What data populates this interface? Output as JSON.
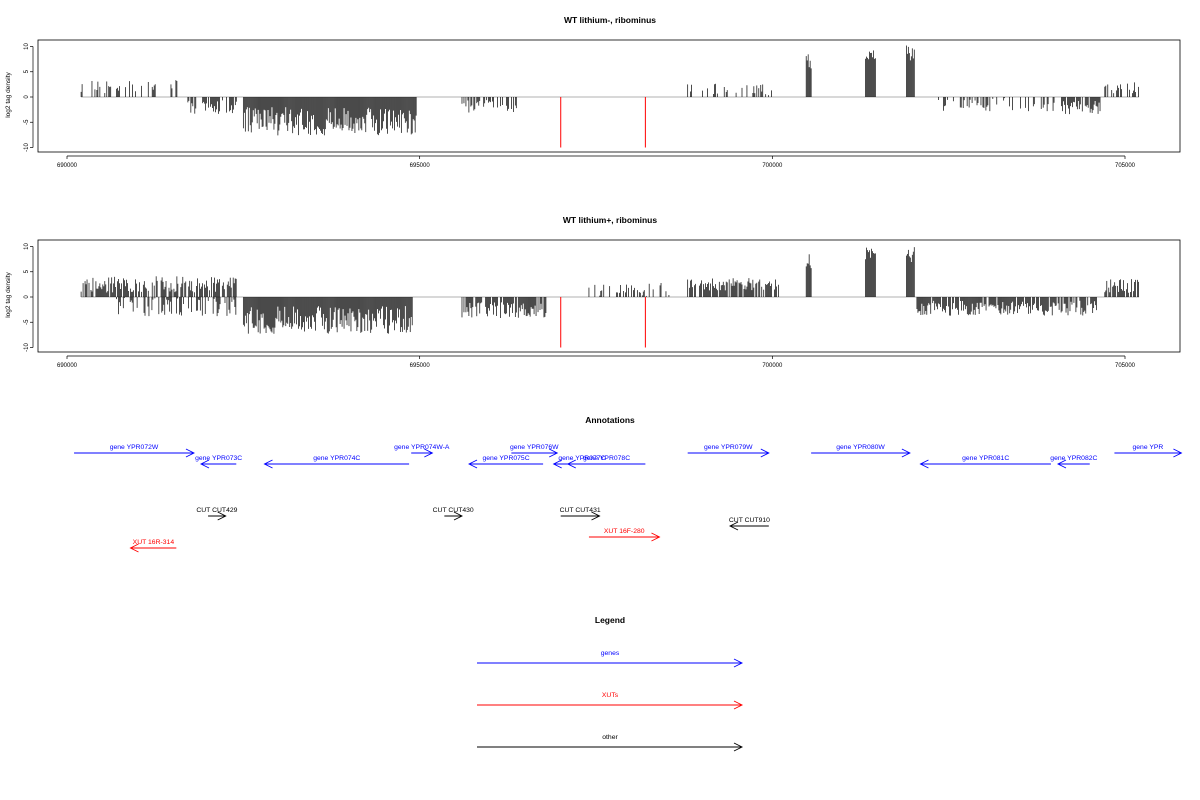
{
  "chart_data": [
    {
      "type": "bar",
      "title": "WT lithium-, ribominus",
      "ylabel": "log2 tag density",
      "xlim": [
        690000,
        705500
      ],
      "ylim": [
        -10.5,
        11
      ],
      "x_ticks": [
        690000,
        695000,
        700000,
        705000
      ],
      "x_tick_labels": [
        "690000",
        "695000",
        "700000",
        "705000"
      ],
      "y_ticks": [
        -10,
        -5,
        0,
        5,
        10
      ],
      "y_tick_labels": [
        "-10",
        "-5",
        "0",
        "5",
        "10"
      ],
      "segments": [
        {
          "x0": 690200,
          "x1": 691600,
          "base": 2.0,
          "var": 1.4,
          "density": 0.35
        },
        {
          "x0": 691700,
          "x1": 692400,
          "base": -2.0,
          "var": 1.4,
          "density": 0.75
        },
        {
          "x0": 692500,
          "x1": 694950,
          "base": -4.8,
          "var": 2.8,
          "density": 1.0
        },
        {
          "x0": 695600,
          "x1": 696400,
          "base": -1.8,
          "var": 1.3,
          "density": 0.45
        },
        {
          "x0": 698800,
          "x1": 700000,
          "base": 1.5,
          "var": 1.2,
          "density": 0.35
        },
        {
          "x0": 700480,
          "x1": 700560,
          "base": 7.0,
          "var": 1.8,
          "density": 1.0
        },
        {
          "x0": 701320,
          "x1": 701460,
          "base": 8.5,
          "var": 1.3,
          "density": 1.0
        },
        {
          "x0": 701900,
          "x1": 702020,
          "base": 8.5,
          "var": 1.8,
          "density": 1.0
        },
        {
          "x0": 702300,
          "x1": 704000,
          "base": -1.5,
          "var": 1.3,
          "density": 0.4
        },
        {
          "x0": 704100,
          "x1": 704650,
          "base": -2.0,
          "var": 1.4,
          "density": 0.7
        },
        {
          "x0": 704700,
          "x1": 705200,
          "base": 2.0,
          "var": 1.4,
          "density": 0.5
        }
      ],
      "markers": [
        {
          "x": 697000,
          "y": -10,
          "color": "#ff0000"
        },
        {
          "x": 698200,
          "y": -10,
          "color": "#ff0000"
        }
      ],
      "baseline_x": [
        690200,
        705200
      ]
    },
    {
      "type": "bar",
      "title": "WT lithium+, ribominus",
      "ylabel": "log2 tag density",
      "xlim": [
        690000,
        705500
      ],
      "ylim": [
        -10.5,
        11
      ],
      "x_ticks": [
        690000,
        695000,
        700000,
        705000
      ],
      "x_tick_labels": [
        "690000",
        "695000",
        "700000",
        "705000"
      ],
      "y_ticks": [
        -10,
        -5,
        0,
        5,
        10
      ],
      "y_tick_labels": [
        "-10",
        "-5",
        "0",
        "5",
        "10"
      ],
      "segments": [
        {
          "x0": 690200,
          "x1": 692400,
          "base": 2.5,
          "var": 1.6,
          "density": 0.75
        },
        {
          "x0": 690700,
          "x1": 692400,
          "base": -2.0,
          "var": 1.8,
          "density": 0.5
        },
        {
          "x0": 692500,
          "x1": 694900,
          "base": -4.5,
          "var": 2.8,
          "density": 1.0
        },
        {
          "x0": 695600,
          "x1": 696800,
          "base": -2.6,
          "var": 1.6,
          "density": 0.85
        },
        {
          "x0": 697400,
          "x1": 698600,
          "base": 1.5,
          "var": 1.3,
          "density": 0.4
        },
        {
          "x0": 698800,
          "x1": 700100,
          "base": 2.6,
          "var": 1.3,
          "density": 0.85
        },
        {
          "x0": 700480,
          "x1": 700560,
          "base": 7.0,
          "var": 1.8,
          "density": 1.0
        },
        {
          "x0": 701320,
          "x1": 701460,
          "base": 8.5,
          "var": 1.3,
          "density": 1.0
        },
        {
          "x0": 701900,
          "x1": 702020,
          "base": 8.5,
          "var": 1.8,
          "density": 1.0
        },
        {
          "x0": 702050,
          "x1": 704600,
          "base": -2.2,
          "var": 1.5,
          "density": 0.8
        },
        {
          "x0": 704700,
          "x1": 705200,
          "base": 2.2,
          "var": 1.4,
          "density": 0.6
        }
      ],
      "markers": [
        {
          "x": 697000,
          "y": -10,
          "color": "#ff0000"
        },
        {
          "x": 698200,
          "y": -10,
          "color": "#ff0000"
        }
      ],
      "baseline_x": [
        690200,
        705200
      ]
    }
  ],
  "annotations": {
    "title": "Annotations",
    "items": [
      {
        "label": "gene YPR072W",
        "x0": 690100,
        "x1": 691800,
        "strand": "+",
        "row": 1,
        "color": "#0000ff"
      },
      {
        "label": "gene YPR073C",
        "x0": 691900,
        "x1": 692400,
        "strand": "-",
        "row": 2,
        "color": "#0000ff"
      },
      {
        "label": "gene YPR074C",
        "x0": 692800,
        "x1": 694850,
        "strand": "-",
        "row": 2,
        "color": "#0000ff"
      },
      {
        "label": "gene YPR074W-A",
        "x0": 694880,
        "x1": 695180,
        "strand": "+",
        "row": 1,
        "color": "#0000ff"
      },
      {
        "label": "gene YPR075C",
        "x0": 695700,
        "x1": 696750,
        "strand": "-",
        "row": 2,
        "color": "#0000ff"
      },
      {
        "label": "gene YPR076W",
        "x0": 696300,
        "x1": 696950,
        "strand": "+",
        "row": 1,
        "color": "#0000ff"
      },
      {
        "label": "gene YPR077C",
        "x0": 696900,
        "x1": 697700,
        "strand": "-",
        "row": 2,
        "color": "#0000ff"
      },
      {
        "label": "gene YPR078C",
        "x0": 697100,
        "x1": 698200,
        "strand": "-",
        "row": 2,
        "color": "#0000ff"
      },
      {
        "label": "gene YPR079W",
        "x0": 698800,
        "x1": 699950,
        "strand": "+",
        "row": 1,
        "color": "#0000ff"
      },
      {
        "label": "gene YPR080W",
        "x0": 700550,
        "x1": 701950,
        "strand": "+",
        "row": 1,
        "color": "#0000ff"
      },
      {
        "label": "gene YPR081C",
        "x0": 702100,
        "x1": 703950,
        "strand": "-",
        "row": 2,
        "color": "#0000ff"
      },
      {
        "label": "gene YPR082C",
        "x0": 704050,
        "x1": 704500,
        "strand": "-",
        "row": 2,
        "color": "#0000ff"
      },
      {
        "label": "gene YPR",
        "x0": 704850,
        "x1": 705800,
        "strand": "+",
        "row": 1,
        "color": "#0000ff"
      },
      {
        "label": "CUT CUT429",
        "x0": 692000,
        "x1": 692250,
        "strand": "+",
        "row": 4,
        "color": "#000000"
      },
      {
        "label": "CUT CUT430",
        "x0": 695350,
        "x1": 695600,
        "strand": "+",
        "row": 4,
        "color": "#000000"
      },
      {
        "label": "CUT CUT431",
        "x0": 697000,
        "x1": 697550,
        "strand": "+",
        "row": 4,
        "color": "#000000"
      },
      {
        "label": "CUT CUT910",
        "x0": 699400,
        "x1": 699950,
        "strand": "-",
        "row": 5,
        "color": "#000000"
      },
      {
        "label": "XUT 16R-314",
        "x0": 690900,
        "x1": 691550,
        "strand": "-",
        "row": 6,
        "color": "#ff0000"
      },
      {
        "label": "XUT 16F-280",
        "x0": 697400,
        "x1": 698400,
        "strand": "+",
        "row": 5.7,
        "color": "#ff0000"
      }
    ]
  },
  "legend": {
    "title": "Legend",
    "items": [
      {
        "label": "genes",
        "color": "#0000ff"
      },
      {
        "label": "XUTs",
        "color": "#ff0000"
      },
      {
        "label": "other",
        "color": "#000000"
      }
    ]
  }
}
